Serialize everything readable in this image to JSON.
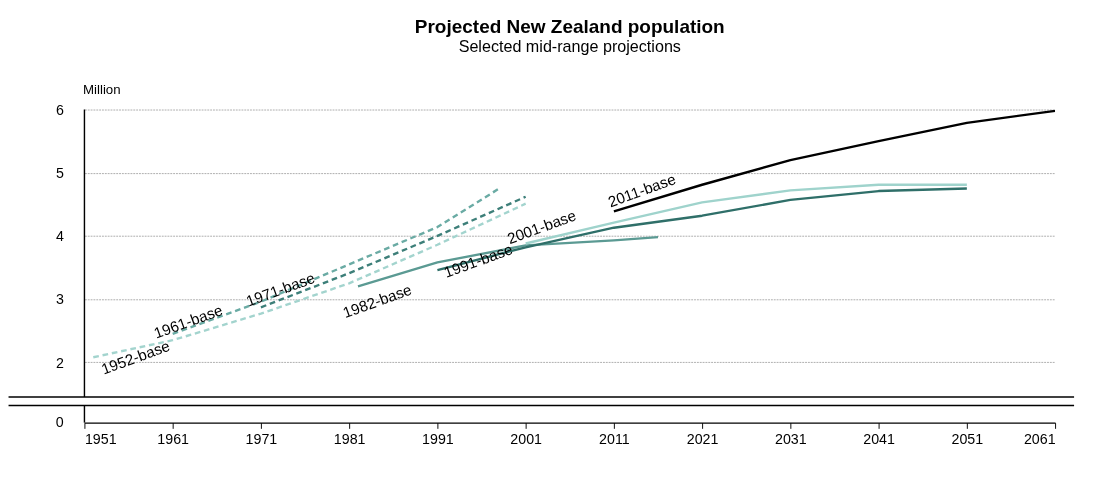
{
  "chart_data": {
    "type": "line",
    "title": "Projected New Zealand population",
    "subtitle": "Selected mid-range projections",
    "ylabel": "Million",
    "xlim": [
      1951,
      2061
    ],
    "xticks": [
      1951,
      1961,
      1971,
      1981,
      1991,
      2001,
      2011,
      2021,
      2031,
      2041,
      2051,
      2061
    ],
    "ylim": [
      1.45,
      6
    ],
    "yticks": [
      2,
      3,
      4,
      5,
      6
    ],
    "grid": "y",
    "annotations": [
      "0"
    ],
    "series": [
      {
        "name": "1952-base",
        "color": "#a3d4ce",
        "line_style": "dashed",
        "x": [
          1952,
          1961,
          1971,
          1981,
          1991,
          2001
        ],
        "values": [
          2.08,
          2.35,
          2.77,
          3.25,
          3.86,
          4.51
        ]
      },
      {
        "name": "1961-base",
        "color": "#6aaba4",
        "line_style": "dashed",
        "x": [
          1961,
          1971,
          1981,
          1991,
          1998
        ],
        "values": [
          2.45,
          2.96,
          3.55,
          4.14,
          4.75
        ]
      },
      {
        "name": "1971-base",
        "color": "#3d7f79",
        "line_style": "dashed",
        "x": [
          1971,
          1981,
          1991,
          2001
        ],
        "values": [
          2.87,
          3.41,
          4.0,
          4.62
        ]
      },
      {
        "name": "1982-base",
        "color": "#5b9a93",
        "line_style": "solid",
        "x": [
          1982,
          1991,
          2001,
          2011,
          2016
        ],
        "values": [
          3.2,
          3.58,
          3.85,
          3.93,
          3.98
        ]
      },
      {
        "name": "1991-base",
        "color": "#2f6f69",
        "line_style": "solid",
        "x": [
          1991,
          2001,
          2011,
          2021,
          2031,
          2041,
          2051
        ],
        "values": [
          3.46,
          3.82,
          4.13,
          4.32,
          4.57,
          4.71,
          4.75
        ]
      },
      {
        "name": "2001-base",
        "color": "#9fd3cc",
        "line_style": "solid",
        "x": [
          2001,
          2011,
          2021,
          2031,
          2041,
          2051
        ],
        "values": [
          3.88,
          4.21,
          4.53,
          4.72,
          4.81,
          4.81
        ]
      },
      {
        "name": "2011-base",
        "color": "#000000",
        "line_style": "solid",
        "x": [
          2011,
          2021,
          2031,
          2041,
          2051,
          2061
        ],
        "values": [
          4.39,
          4.81,
          5.2,
          5.5,
          5.79,
          5.98
        ]
      }
    ]
  }
}
